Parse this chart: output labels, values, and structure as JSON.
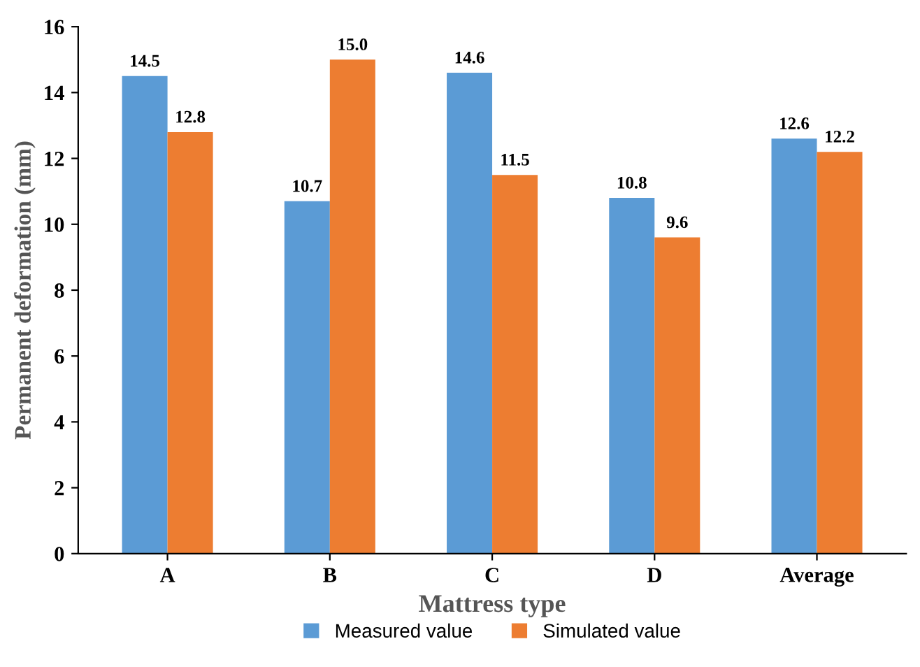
{
  "chart_data": {
    "type": "bar",
    "xlabel": "Mattress type",
    "ylabel": "Permanent deformation (mm)",
    "categories": [
      "A",
      "B",
      "C",
      "D",
      "Average"
    ],
    "series": [
      {
        "name": "Measured value",
        "color": "#5b9bd5",
        "values": [
          14.5,
          10.7,
          14.6,
          10.8,
          12.6
        ],
        "value_labels": [
          "14.5",
          "10.7",
          "14.6",
          "10.8",
          "12.6"
        ]
      },
      {
        "name": "Simulated value",
        "color": "#ed7d31",
        "values": [
          12.8,
          15.0,
          11.5,
          9.6,
          12.2
        ],
        "value_labels": [
          "12.8",
          "15.0",
          "11.5",
          "9.6",
          "12.2"
        ]
      }
    ],
    "ylim": [
      0,
      16
    ],
    "yticks": [
      0,
      2,
      4,
      6,
      8,
      10,
      12,
      14,
      16
    ],
    "grid": false,
    "legend": "bottom"
  }
}
